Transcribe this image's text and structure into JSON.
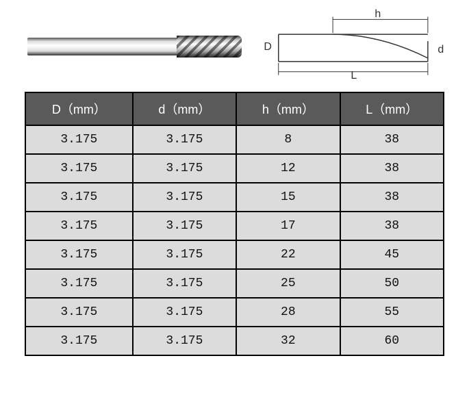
{
  "diagram": {
    "labels": {
      "D": "D",
      "d": "d",
      "h": "h",
      "L": "L"
    }
  },
  "table": {
    "header_bg": "#5a5a5a",
    "header_fg": "#ffffff",
    "cell_bg": "#dcdcdc",
    "border_color": "#000000",
    "columns": [
      "D（mm）",
      "d（mm）",
      "h（mm）",
      "L（mm）"
    ],
    "rows": [
      [
        "3.175",
        "3.175",
        "8",
        "38"
      ],
      [
        "3.175",
        "3.175",
        "12",
        "38"
      ],
      [
        "3.175",
        "3.175",
        "15",
        "38"
      ],
      [
        "3.175",
        "3.175",
        "17",
        "38"
      ],
      [
        "3.175",
        "3.175",
        "22",
        "45"
      ],
      [
        "3.175",
        "3.175",
        "25",
        "50"
      ],
      [
        "3.175",
        "3.175",
        "28",
        "55"
      ],
      [
        "3.175",
        "3.175",
        "32",
        "60"
      ]
    ]
  }
}
